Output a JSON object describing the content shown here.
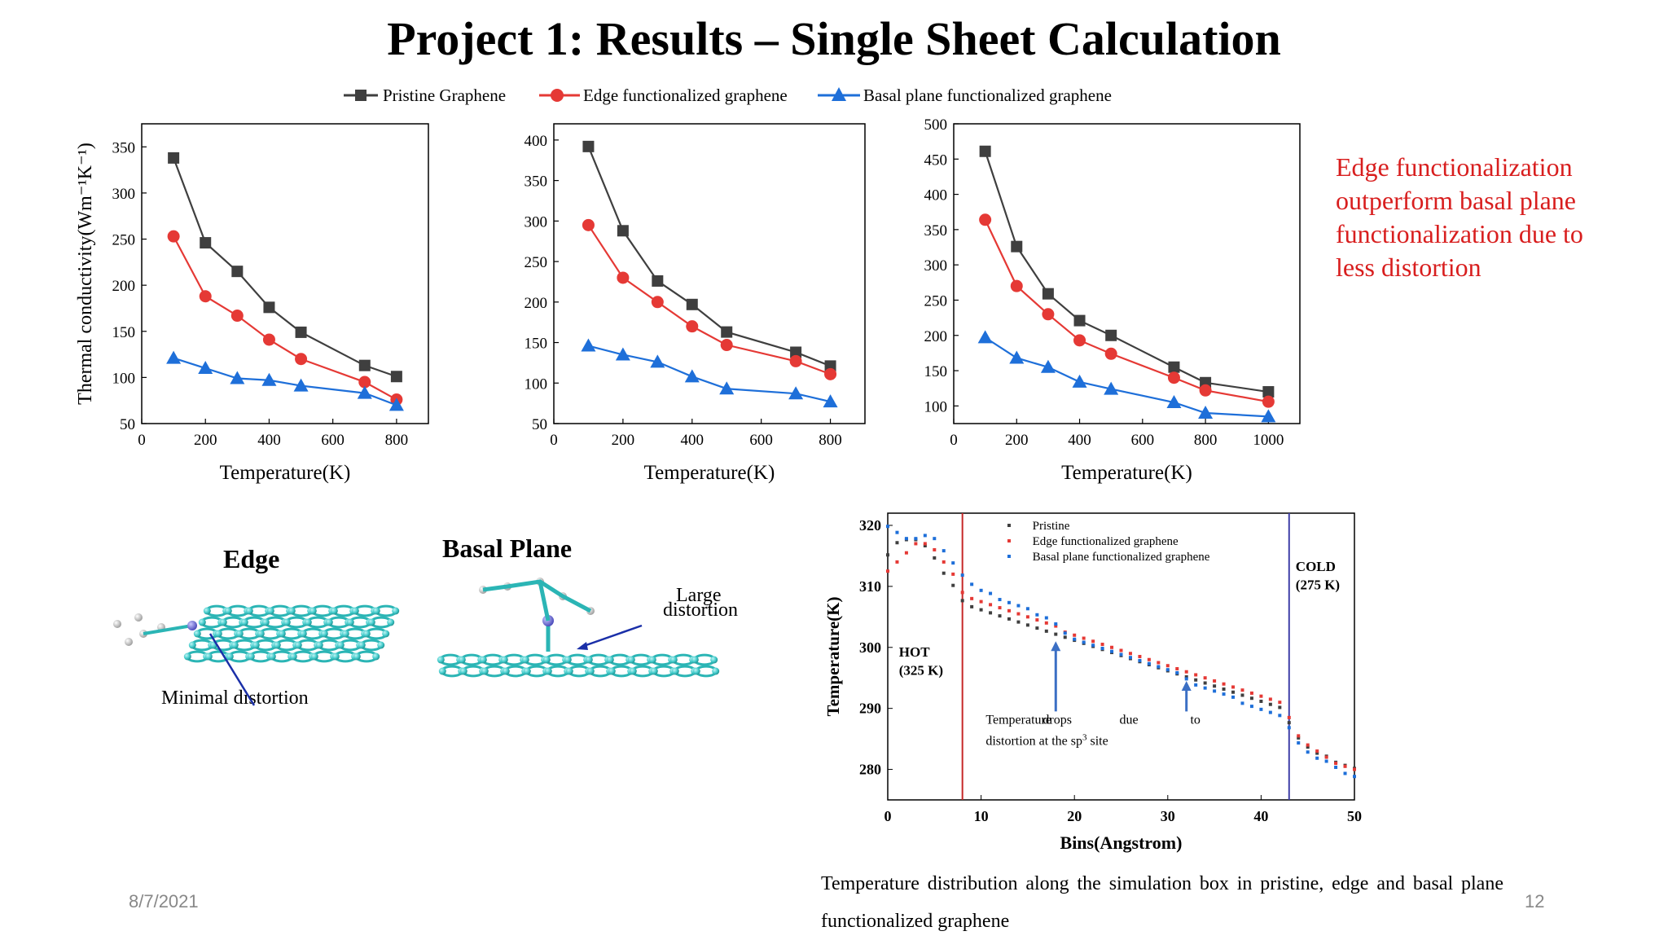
{
  "slide": {
    "title": "Project 1: Results – Single Sheet Calculation",
    "date": "8/7/2021",
    "page_number": "12"
  },
  "legend": {
    "entries": [
      "Pristine Graphene",
      "Edge functionalized graphene",
      "Basal plane functionalized graphene"
    ]
  },
  "colors": {
    "pristine": "#3f3f3f",
    "edge": "#e53935",
    "basal": "#1e6fd9",
    "hot_line": "#c62828",
    "cold_line": "#3f3fa8",
    "callout": "#d81e1e",
    "annotation_arrow": "#3b6fc4"
  },
  "callout": {
    "lines": [
      "Edge functionalization",
      "outperform basal plane",
      "functionalization due to",
      "less distortion"
    ]
  },
  "molecules": {
    "edge_label": "Edge",
    "basal_label": "Basal Plane",
    "edge_note": "Minimal distortion",
    "basal_note_line1": "Large",
    "basal_note_line2": "distortion"
  },
  "caption": "Temperature distribution along the simulation box in pristine, edge and basal plane functionalized graphene",
  "chart_data": [
    {
      "type": "line",
      "title": "",
      "xlabel": "Temperature(K)",
      "ylabel": "Thermal conductivity(Wm⁻¹K⁻¹)",
      "xlim": [
        0,
        900
      ],
      "ylim": [
        50,
        375
      ],
      "xticks": [
        0,
        200,
        400,
        600,
        800
      ],
      "yticks": [
        50,
        100,
        150,
        200,
        250,
        300,
        350
      ],
      "x": [
        100,
        200,
        300,
        400,
        500,
        700,
        800
      ],
      "series": [
        {
          "name": "Pristine Graphene",
          "marker": "square",
          "values": [
            338,
            246,
            215,
            176,
            149,
            113,
            101
          ]
        },
        {
          "name": "Edge functionalized graphene",
          "marker": "circle",
          "values": [
            253,
            188,
            167,
            141,
            120,
            95,
            76
          ]
        },
        {
          "name": "Basal plane functionalized graphene",
          "marker": "triangle",
          "values": [
            121,
            110,
            99,
            97,
            91,
            83,
            70
          ]
        }
      ]
    },
    {
      "type": "line",
      "title": "",
      "xlabel": "Temperature(K)",
      "ylabel": "",
      "xlim": [
        0,
        900
      ],
      "ylim": [
        50,
        420
      ],
      "xticks": [
        0,
        200,
        400,
        600,
        800
      ],
      "yticks": [
        50,
        100,
        150,
        200,
        250,
        300,
        350,
        400
      ],
      "x": [
        100,
        200,
        300,
        400,
        500,
        700,
        800
      ],
      "series": [
        {
          "name": "Pristine Graphene",
          "marker": "square",
          "values": [
            392,
            288,
            226,
            197,
            163,
            138,
            121
          ]
        },
        {
          "name": "Edge functionalized graphene",
          "marker": "circle",
          "values": [
            295,
            230,
            200,
            170,
            147,
            127,
            111
          ]
        },
        {
          "name": "Basal plane functionalized graphene",
          "marker": "triangle",
          "values": [
            146,
            135,
            126,
            108,
            93,
            87,
            77
          ]
        }
      ]
    },
    {
      "type": "line",
      "title": "",
      "xlabel": "Temperature(K)",
      "ylabel": "",
      "xlim": [
        0,
        1100
      ],
      "ylim": [
        75,
        500
      ],
      "xticks": [
        0,
        200,
        400,
        600,
        800,
        1000
      ],
      "yticks": [
        100,
        150,
        200,
        250,
        300,
        350,
        400,
        450,
        500
      ],
      "x": [
        100,
        200,
        300,
        400,
        500,
        700,
        800,
        1000
      ],
      "series": [
        {
          "name": "Pristine Graphene",
          "marker": "square",
          "values": [
            461,
            326,
            259,
            221,
            200,
            155,
            133,
            120
          ]
        },
        {
          "name": "Edge functionalized graphene",
          "marker": "circle",
          "values": [
            364,
            270,
            230,
            193,
            174,
            140,
            122,
            106
          ]
        },
        {
          "name": "Basal plane functionalized graphene",
          "marker": "triangle",
          "values": [
            197,
            168,
            155,
            134,
            124,
            105,
            90,
            85
          ]
        }
      ]
    },
    {
      "type": "scatter",
      "title": "",
      "xlabel": "Bins(Angstrom)",
      "ylabel": "Temperature(K)",
      "xlim": [
        0,
        50
      ],
      "ylim": [
        275,
        322
      ],
      "xticks": [
        0,
        10,
        20,
        30,
        40,
        50
      ],
      "yticks": [
        280,
        290,
        300,
        310,
        320
      ],
      "legend_position": "top-left",
      "series": [
        {
          "name": "Pristine",
          "x": [
            0,
            1,
            2,
            3,
            4,
            5,
            6,
            7,
            8,
            9,
            10,
            11,
            12,
            13,
            14,
            15,
            16,
            17,
            18,
            19,
            20,
            21,
            22,
            23,
            24,
            25,
            26,
            27,
            28,
            29,
            30,
            31,
            32,
            33,
            34,
            35,
            36,
            37,
            38,
            39,
            40,
            41,
            42,
            43,
            44,
            45,
            46,
            47,
            48,
            49,
            50
          ],
          "values": [
            315,
            317,
            317.5,
            317.5,
            316.5,
            314.5,
            312,
            310,
            307.5,
            306.5,
            306,
            305.5,
            305,
            304.5,
            304,
            303.5,
            303,
            302.5,
            302,
            301.5,
            301,
            300.5,
            300,
            299.5,
            299,
            298.5,
            298,
            297.5,
            297,
            296.5,
            296,
            295.5,
            295,
            294.5,
            294,
            293.5,
            293,
            292.5,
            292,
            291.5,
            291,
            290.5,
            290,
            287.5,
            285,
            283.5,
            282.5,
            282,
            281,
            280.5,
            280
          ]
        },
        {
          "name": "Edge functionalized graphene",
          "x": [
            0,
            1,
            2,
            3,
            4,
            5,
            6,
            7,
            8,
            9,
            10,
            11,
            12,
            13,
            14,
            15,
            16,
            17,
            18,
            19,
            20,
            21,
            22,
            23,
            24,
            25,
            26,
            27,
            28,
            29,
            30,
            31,
            32,
            33,
            34,
            35,
            36,
            37,
            38,
            39,
            40,
            41,
            42,
            43,
            44,
            45,
            46,
            47,
            48,
            49,
            50
          ],
          "values": [
            312.5,
            314,
            315.5,
            317,
            317,
            316,
            314,
            312,
            309,
            308,
            307.5,
            307,
            306.5,
            306,
            305.5,
            305,
            304.5,
            304,
            303.5,
            302.5,
            302,
            301.5,
            301,
            300.5,
            300,
            299.5,
            299,
            298.5,
            298,
            297.5,
            297,
            296.5,
            296,
            295.5,
            295,
            294.5,
            294,
            293.5,
            293,
            292.5,
            292,
            291.5,
            291,
            288.5,
            285.5,
            284,
            283,
            282,
            281,
            280.5,
            280
          ]
        },
        {
          "name": "Basal plane functionalized graphene",
          "x": [
            0,
            1,
            2,
            3,
            4,
            5,
            6,
            7,
            8,
            9,
            10,
            11,
            12,
            13,
            14,
            15,
            16,
            17,
            18,
            19,
            20,
            21,
            22,
            23,
            24,
            25,
            26,
            27,
            28,
            29,
            30,
            31,
            32,
            33,
            34,
            35,
            36,
            37,
            38,
            39,
            40,
            41,
            42,
            43,
            44,
            45,
            46,
            47,
            48,
            49,
            50
          ],
          "values": [
            320,
            319,
            318,
            318,
            318.5,
            318,
            316,
            314,
            312,
            310.5,
            309.5,
            309,
            308,
            307.5,
            307,
            306.5,
            305.5,
            305,
            304,
            302.5,
            301.5,
            301,
            300.5,
            300,
            299.5,
            299,
            298.5,
            298,
            297.5,
            297,
            296.5,
            296,
            295,
            294,
            293.5,
            293,
            292.5,
            292,
            291,
            290.5,
            290,
            289.5,
            289,
            287,
            284.5,
            283,
            282,
            281.5,
            280.5,
            279.5,
            279
          ]
        }
      ],
      "annotations": {
        "hot_label": "HOT",
        "hot_value": "(325 K)",
        "hot_x": 8,
        "cold_label": "COLD",
        "cold_value": "(275 K)",
        "cold_x": 43,
        "note_line1": "Temperature drops due to",
        "note_line2_pre": "distortion at the sp",
        "note_line2_sup": "3",
        "note_line2_post": " site",
        "arrow_x": [
          18,
          32
        ]
      }
    }
  ]
}
